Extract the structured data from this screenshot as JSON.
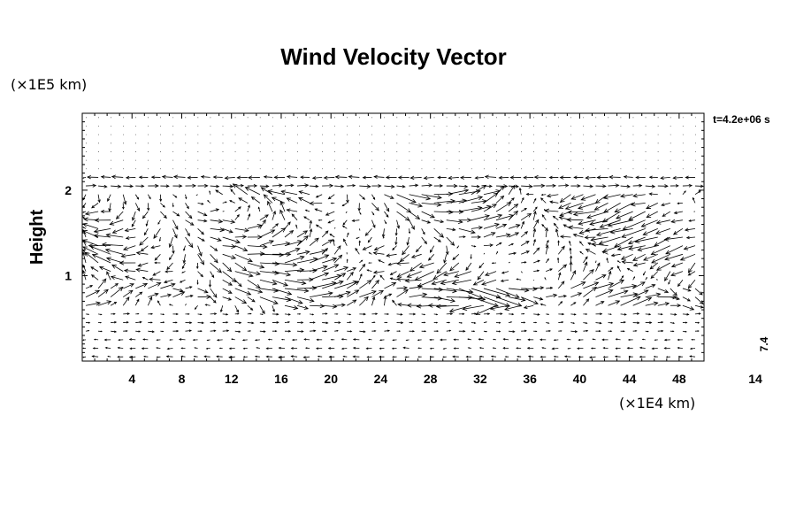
{
  "chart_data": {
    "type": "vector-field",
    "title": "Wind Velocity Vector",
    "xlabel": "",
    "ylabel": "Height",
    "x_unit": "(×1E4 km)",
    "y_unit": "(×1E5 km)",
    "xlim": [
      0,
      50
    ],
    "ylim": [
      0,
      2.9
    ],
    "x_ticks": [
      4,
      8,
      12,
      16,
      20,
      24,
      28,
      32,
      36,
      40,
      44,
      48
    ],
    "y_ticks": [
      1,
      2
    ],
    "time_label": "t=4.2e+06 s",
    "ref_vector_value": "7.4",
    "ref_vector_length": "14",
    "grid": false,
    "legend": "none"
  }
}
